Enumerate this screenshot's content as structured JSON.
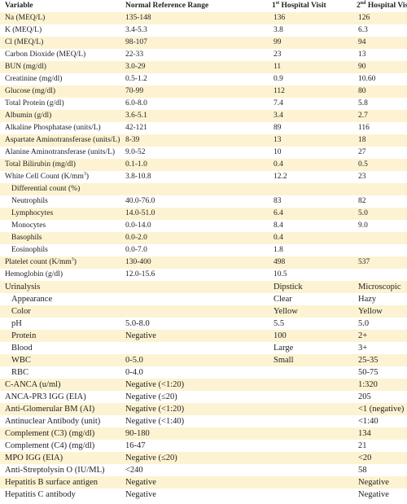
{
  "table": {
    "header": [
      "Variable",
      "Normal Reference Range",
      [
        "1",
        "st",
        " Hospital Visit"
      ],
      [
        "2",
        "nd",
        " Hospital Visit"
      ]
    ],
    "rows": [
      [
        "Na (MEQ/L)",
        "135-148",
        "136",
        "126"
      ],
      [
        "K (MEQ/L)",
        "3.4-5.3",
        "3.8",
        "6.3"
      ],
      [
        "Cl (MEQ/L)",
        "98-107",
        "99",
        "94"
      ],
      [
        "Carbon Dioxide (MEQ/L)",
        "22-33",
        "23",
        "13"
      ],
      [
        "BUN  (mg/dl)",
        "3.0-29",
        "11",
        "90"
      ],
      [
        "Creatinine (mg/dl)",
        "0.5-1.2",
        "0.9",
        "10.60"
      ],
      [
        "Glucose  (mg/dl)",
        "70-99",
        "112",
        "80"
      ],
      [
        "Total Protein  (g/dl)",
        "6.0-8.0",
        "7.4",
        "5.8"
      ],
      [
        "Albumin  (g/dl)",
        "3.6-5.1",
        "3.4",
        "2.7"
      ],
      [
        "Alkaline Phosphatase (units/L)",
        "42-121",
        "89",
        "116"
      ],
      [
        "Aspartate Aminotransferase (units/L)",
        "8-39",
        "13",
        "18"
      ],
      [
        "Alanine Aminotransferase (units/L)",
        "9.0-52",
        "10",
        "27"
      ],
      [
        "Total Bilirubin (mg/dl)",
        "0.1-1.0",
        "0.4",
        "0.5"
      ],
      [
        [
          "White Cell Count (K/mm",
          "3",
          ")"
        ],
        "3.8-10.8",
        "12.2",
        "23"
      ],
      [
        "Differential count (%)",
        null,
        null,
        null
      ],
      [
        "Neutrophils",
        "40.0-76.0",
        "83",
        "82"
      ],
      [
        "Lymphocytes",
        "14.0-51.0",
        "6.4",
        "5.0"
      ],
      [
        "Monocytes",
        "0.0-14.0",
        "8.4",
        "9.0"
      ],
      [
        "Basophils",
        "0.0-2.0",
        "0.4",
        null
      ],
      [
        "Eosinophils",
        "0.0-7.0",
        "1.8",
        null
      ],
      [
        [
          "Platelet count (K/mm",
          "3",
          ")"
        ],
        "130-400",
        "498",
        "537"
      ],
      [
        "Hemoglobin (g/dl)",
        "12.0-15.6",
        "10.5",
        null
      ],
      [
        "Urinalysis",
        null,
        "Dipstick",
        "Microscopic"
      ],
      [
        "Appearance",
        null,
        "Clear",
        "Hazy"
      ],
      [
        "Color",
        null,
        "Yellow",
        "Yellow"
      ],
      [
        "pH",
        "5.0-8.0",
        "5.5",
        "5.0"
      ],
      [
        "Protein",
        "Negative",
        "100",
        "2+"
      ],
      [
        "Blood",
        null,
        "Large",
        "3+"
      ],
      [
        "WBC",
        "0-5.0",
        "Small",
        "25-35"
      ],
      [
        "RBC",
        "0-4.0",
        null,
        "50-75"
      ],
      [
        "C-ANCA (u/ml)",
        "Negative (<1:20)",
        null,
        "1:320"
      ],
      [
        "ANCA-PR3  IGG (EIA)",
        "Negative (≤20)",
        null,
        "205"
      ],
      [
        "Anti-Glomerular BM (AI)",
        "Negative (<1:20)",
        null,
        "<1 (negative)"
      ],
      [
        "Antinuclear Antibody (unit)",
        "Negative (<1:40)",
        null,
        "<1:40"
      ],
      [
        "Complement (C3) (mg/dl)",
        "90-180",
        null,
        "134"
      ],
      [
        "Complement (C4) (mg/dl)",
        "16-47",
        null,
        "21"
      ],
      [
        "MPO IGG (EIA)",
        "Negative (≤20)",
        null,
        "<20"
      ],
      [
        "Anti-Streptolysin O (IU/ML)",
        "<240",
        null,
        "58"
      ],
      [
        "Hepatitis B surface antigen",
        "Negative",
        null,
        "Negative"
      ],
      [
        "Hepatitis C antibody",
        "Negative",
        null,
        "Negative"
      ]
    ]
  }
}
